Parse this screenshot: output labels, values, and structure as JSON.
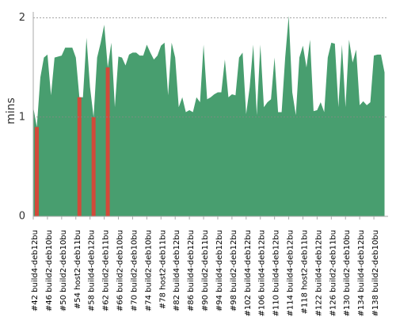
{
  "chart_data": {
    "type": "area",
    "y_label": "mins",
    "color": "#489e6f",
    "ylim": [
      0,
      2.06
    ],
    "yticks": [
      0,
      1,
      2
    ],
    "grid": true,
    "categories": [
      "#42 build4-deb12bu",
      null,
      null,
      null,
      "#46 build2-deb10bu",
      null,
      null,
      null,
      "#50 build2-deb10bu",
      null,
      null,
      null,
      "#54 host2-deb11bu",
      null,
      null,
      null,
      "#58 build4-deb12bu",
      null,
      null,
      null,
      "#62 build2-deb11bu",
      null,
      null,
      null,
      "#66 build2-deb10bu",
      null,
      null,
      null,
      "#70 build2-deb10bu",
      null,
      null,
      null,
      "#74 build2-deb10bu",
      null,
      null,
      null,
      "#78 host2-deb11bu",
      null,
      null,
      null,
      "#82 build4-deb12bu",
      null,
      null,
      null,
      "#86 build4-deb12bu",
      null,
      null,
      null,
      "#90 build2-deb11bu",
      null,
      null,
      null,
      "#94 build4-deb12bu",
      null,
      null,
      null,
      "#98 build2-deb12bu",
      null,
      null,
      null,
      "#102 build4-deb12bu",
      null,
      null,
      null,
      "#106 build4-deb12bu",
      null,
      null,
      null,
      "#110 build4-deb12bu",
      null,
      null,
      null,
      "#114 build4-deb12bu",
      null,
      null,
      null,
      "#118 host2-deb11bu",
      null,
      null,
      null,
      "#122 build4-deb12bu",
      null,
      null,
      null,
      "#126 build2-deb11bu",
      null,
      null,
      null,
      "#130 build2-deb10bu",
      null,
      null,
      null,
      "#134 build4-deb12bu",
      null,
      null,
      null,
      "#138 build2-deb10bu",
      null,
      null,
      null
    ],
    "values": [
      1.1,
      0.9,
      1.4,
      1.6,
      1.63,
      1.22,
      1.6,
      1.61,
      1.62,
      1.7,
      1.7,
      1.7,
      1.6,
      1.2,
      1.2,
      1.8,
      1.3,
      1.0,
      1.6,
      1.75,
      1.93,
      1.5,
      1.75,
      1.1,
      1.61,
      1.6,
      1.52,
      1.63,
      1.65,
      1.65,
      1.62,
      1.62,
      1.73,
      1.65,
      1.58,
      1.62,
      1.72,
      1.75,
      1.22,
      1.75,
      1.6,
      1.1,
      1.2,
      1.05,
      1.07,
      1.05,
      1.2,
      1.15,
      1.73,
      1.18,
      1.2,
      1.23,
      1.25,
      1.25,
      1.58,
      1.2,
      1.23,
      1.22,
      1.6,
      1.65,
      1.03,
      1.3,
      1.73,
      1.02,
      1.73,
      1.1,
      1.15,
      1.18,
      1.6,
      1.05,
      1.05,
      1.6,
      2.02,
      1.25,
      1.02,
      1.6,
      1.72,
      1.5,
      1.78,
      1.06,
      1.07,
      1.15,
      1.05,
      1.6,
      1.75,
      1.74,
      1.1,
      1.73,
      1.1,
      1.78,
      1.55,
      1.68,
      1.12,
      1.16,
      1.12,
      1.15,
      1.62,
      1.63,
      1.63,
      1.45
    ],
    "point_colors": [
      "#489e6f",
      "#d24a3a",
      "#489e6f",
      "#489e6f",
      "#489e6f",
      "#489e6f",
      "#489e6f",
      "#489e6f",
      "#489e6f",
      "#489e6f",
      "#489e6f",
      "#489e6f",
      "#489e6f",
      "#d24a3a",
      "#489e6f",
      "#489e6f",
      "#489e6f",
      "#d24a3a",
      "#489e6f",
      "#489e6f",
      "#489e6f",
      "#d24a3a",
      "#489e6f",
      "#489e6f",
      "#489e6f",
      "#489e6f",
      "#489e6f",
      "#489e6f",
      "#489e6f",
      "#489e6f",
      "#489e6f",
      "#489e6f",
      "#489e6f",
      "#489e6f",
      "#489e6f",
      "#489e6f",
      "#489e6f",
      "#489e6f",
      "#489e6f",
      "#489e6f",
      "#489e6f",
      "#489e6f",
      "#489e6f",
      "#489e6f",
      "#489e6f",
      "#489e6f",
      "#489e6f",
      "#489e6f",
      "#489e6f",
      "#489e6f",
      "#489e6f",
      "#489e6f",
      "#489e6f",
      "#489e6f",
      "#489e6f",
      "#489e6f",
      "#489e6f",
      "#489e6f",
      "#489e6f",
      "#489e6f",
      "#489e6f",
      "#489e6f",
      "#489e6f",
      "#489e6f",
      "#489e6f",
      "#489e6f",
      "#489e6f",
      "#489e6f",
      "#489e6f",
      "#489e6f",
      "#489e6f",
      "#489e6f",
      "#489e6f",
      "#489e6f",
      "#489e6f",
      "#489e6f",
      "#489e6f",
      "#489e6f",
      "#489e6f",
      "#489e6f",
      "#489e6f",
      "#489e6f",
      "#489e6f",
      "#489e6f",
      "#489e6f",
      "#489e6f",
      "#489e6f",
      "#489e6f",
      "#489e6f",
      "#489e6f",
      "#489e6f",
      "#489e6f",
      "#489e6f",
      "#489e6f",
      "#489e6f",
      "#489e6f",
      "#489e6f",
      "#489e6f",
      "#489e6f",
      "#489e6f"
    ]
  }
}
